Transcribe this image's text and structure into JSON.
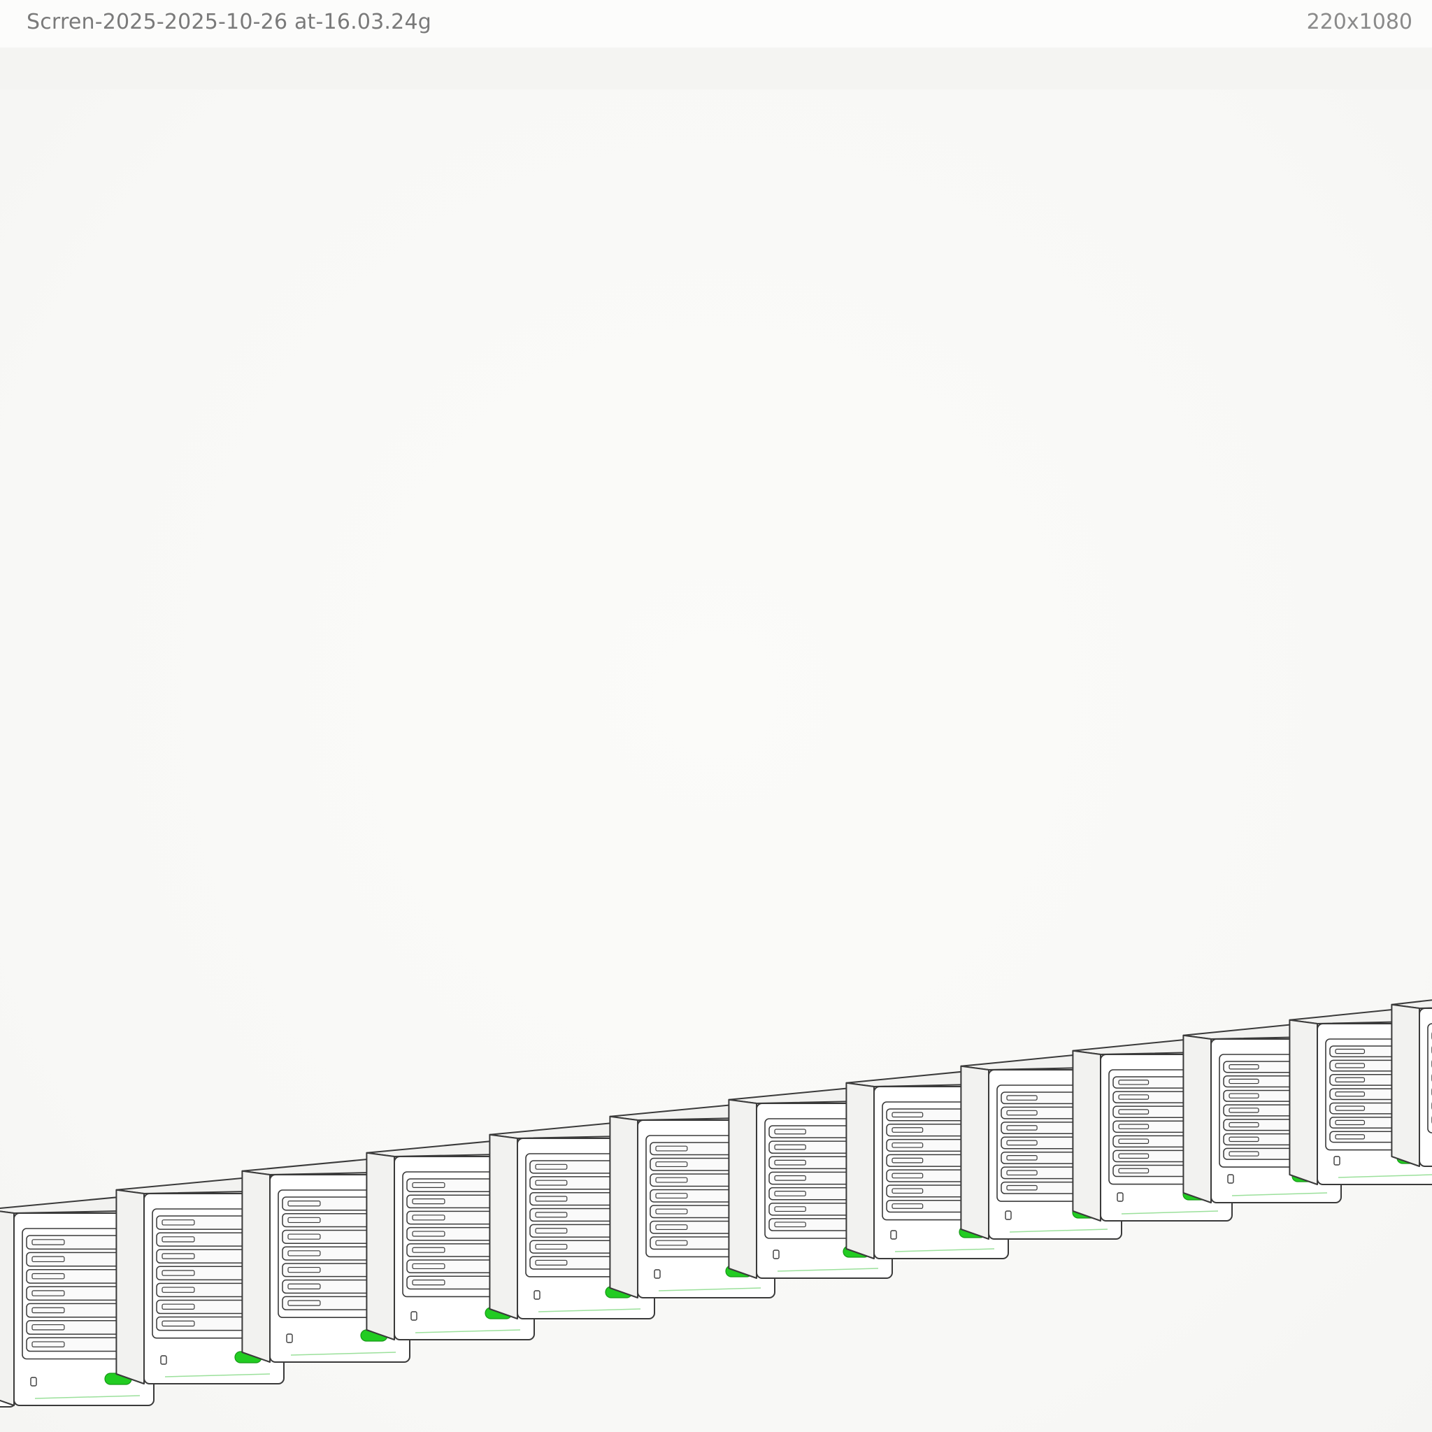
{
  "viewer": {
    "filename": "Scrren-2025-2025-10-26 at-16.03.24g",
    "dimensions": "220x1080"
  },
  "illustration": {
    "subject": "row of server towers",
    "server_count": 13,
    "bays_per_server": 7,
    "colors": {
      "outline": "#3a3a3a",
      "led_green": "#22cc22",
      "body_fill": "#ffffff",
      "side_fill": "#f2f2f0"
    }
  }
}
